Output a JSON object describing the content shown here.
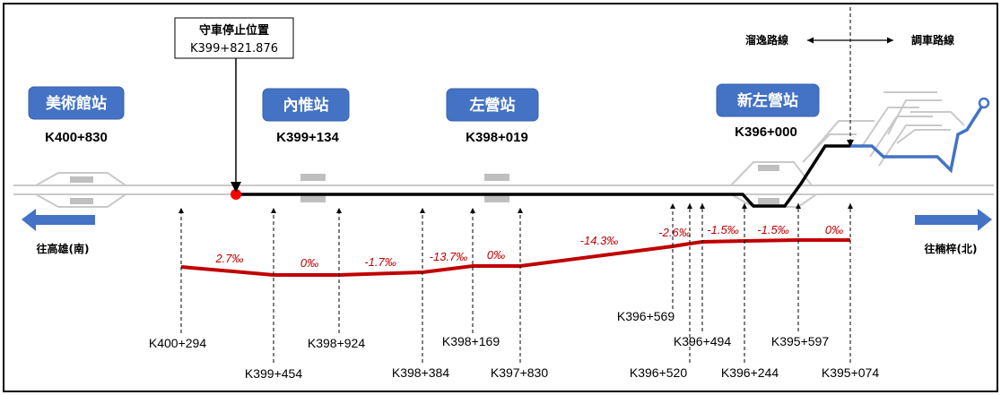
{
  "stations": [
    {
      "name": "美術館站",
      "km": "K400+830"
    },
    {
      "name": "內惟站",
      "km": "K399+134"
    },
    {
      "name": "左營站",
      "km": "K398+019"
    },
    {
      "name": "新左營站",
      "km": "K396+000"
    }
  ],
  "stop_position": {
    "label": "守車停止位置",
    "km": "K399+821.876"
  },
  "route_legend": {
    "left": "溜逸路線",
    "right": "調車路線"
  },
  "directions": {
    "south": "往高雄(南)",
    "north": "往楠梓(北)"
  },
  "gradients": [
    "2.7‰",
    "0‰",
    "-1.7‰",
    "-13.7‰",
    "0‰",
    "-14.3‰",
    "-2.6‰",
    "-1.5‰",
    "-1.5‰",
    "0‰"
  ],
  "chainages": [
    "K400+294",
    "K399+454",
    "K398+924",
    "K398+384",
    "K398+169",
    "K397+830",
    "K396+569",
    "K396+520",
    "K396+494",
    "K396+244",
    "K395+597",
    "K395+074"
  ],
  "colors": {
    "station_box": "#4472c4",
    "gradient_line": "#c00000",
    "runaway_path": "#000000",
    "shunting_path": "#4472c4",
    "stop_marker": "#ff0000"
  }
}
